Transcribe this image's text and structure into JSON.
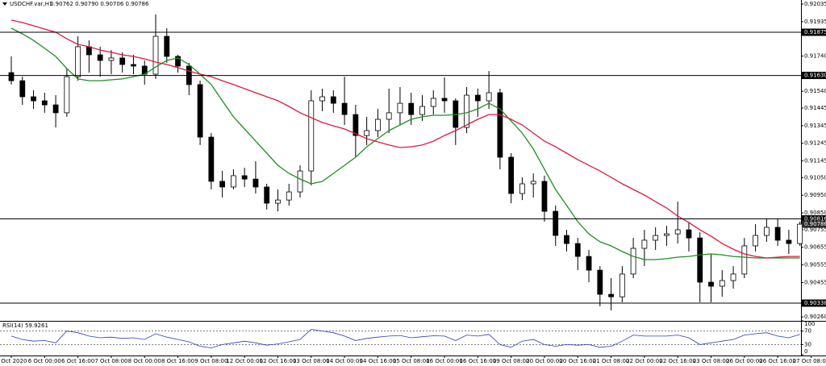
{
  "chart_data": {
    "type": "candlestick",
    "title": "USDCHF.var,H1",
    "subtitle": "0.90762 0.90790 0.90706 0.90786",
    "categories": [
      "5 Oct 2020",
      null,
      null,
      "6 Oct 00:00",
      null,
      null,
      "6 Oct 16:00",
      null,
      null,
      "7 Oct 08:00",
      null,
      null,
      "8 Oct 00:00",
      null,
      null,
      "8 Oct 16:00",
      null,
      null,
      "9 Oct 08:00",
      null,
      null,
      "12 Oct 00:00",
      null,
      null,
      "12 Oct 16:00",
      null,
      null,
      "13 Oct 08:00",
      null,
      null,
      "14 Oct 00:00",
      null,
      null,
      "14 Oct 16:00",
      null,
      null,
      "15 Oct 08:00",
      null,
      null,
      "16 Oct 00:00",
      null,
      null,
      "16 Oct 16:00",
      null,
      null,
      "19 Oct 08:00",
      null,
      null,
      "20 Oct 00:00",
      null,
      null,
      "20 Oct 16:00",
      null,
      null,
      "21 Oct 08:00",
      null,
      null,
      "22 Oct 00:00",
      null,
      null,
      "22 Oct 16:00",
      null,
      null,
      "23 Oct 08:00",
      null,
      null,
      "26 Oct 00:00",
      null,
      null,
      "26 Oct 16:00",
      null,
      null,
      "27 Oct 08:00"
    ],
    "ohlc": [
      [
        0.91646,
        0.91738,
        0.91578,
        0.916
      ],
      [
        0.916,
        0.91623,
        0.91463,
        0.91509
      ],
      [
        0.91509,
        0.91546,
        0.9144,
        0.91486
      ],
      [
        0.91486,
        0.91532,
        0.91418,
        0.91463
      ],
      [
        0.91463,
        0.91518,
        0.91335,
        0.91418
      ],
      [
        0.91418,
        0.91669,
        0.91395,
        0.91623
      ],
      [
        0.91623,
        0.91852,
        0.916,
        0.91793
      ],
      [
        0.91793,
        0.91829,
        0.91646,
        0.91747
      ],
      [
        0.91747,
        0.91793,
        0.91623,
        0.91715
      ],
      [
        0.91715,
        0.91774,
        0.91637,
        0.91729
      ],
      [
        0.91729,
        0.91761,
        0.91646,
        0.91692
      ],
      [
        0.91692,
        0.91747,
        0.91637,
        0.91683
      ],
      [
        0.91683,
        0.91715,
        0.91578,
        0.91637
      ],
      [
        0.91637,
        0.91976,
        0.9161,
        0.91852
      ],
      [
        0.91852,
        0.91898,
        0.91701,
        0.91738
      ],
      [
        0.91738,
        0.91747,
        0.91646,
        0.91683
      ],
      [
        0.91683,
        0.91701,
        0.91518,
        0.91578
      ],
      [
        0.91578,
        0.916,
        0.91235,
        0.9128
      ],
      [
        0.9128,
        0.91303,
        0.90983,
        0.91029
      ],
      [
        0.91029,
        0.91088,
        0.90937,
        0.90997
      ],
      [
        0.90997,
        0.91097,
        0.90983,
        0.91061
      ],
      [
        0.91061,
        0.91106,
        0.90997,
        0.91042
      ],
      [
        0.91042,
        0.91143,
        0.9096,
        0.90997
      ],
      [
        0.90997,
        0.91015,
        0.90869,
        0.90905
      ],
      [
        0.90905,
        0.90983,
        0.90859,
        0.90923
      ],
      [
        0.90923,
        0.91015,
        0.90892,
        0.90969
      ],
      [
        0.90969,
        0.9112,
        0.90937,
        0.91088
      ],
      [
        0.91088,
        0.91546,
        0.91006,
        0.91486
      ],
      [
        0.91486,
        0.91555,
        0.91427,
        0.91509
      ],
      [
        0.91509,
        0.91546,
        0.91418,
        0.91472
      ],
      [
        0.91472,
        0.91623,
        0.91349,
        0.91408
      ],
      [
        0.91408,
        0.91463,
        0.91166,
        0.91289
      ],
      [
        0.91289,
        0.91395,
        0.91235,
        0.91317
      ],
      [
        0.91317,
        0.9144,
        0.9128,
        0.91381
      ],
      [
        0.91381,
        0.91555,
        0.91303,
        0.91418
      ],
      [
        0.91418,
        0.91564,
        0.91349,
        0.91472
      ],
      [
        0.91472,
        0.91532,
        0.91349,
        0.91408
      ],
      [
        0.91408,
        0.91518,
        0.91372,
        0.91454
      ],
      [
        0.91454,
        0.91546,
        0.91408,
        0.915
      ],
      [
        0.915,
        0.91619,
        0.91418,
        0.91486
      ],
      [
        0.91486,
        0.915,
        0.91235,
        0.91335
      ],
      [
        0.91335,
        0.91564,
        0.91303,
        0.91518
      ],
      [
        0.91518,
        0.91555,
        0.91395,
        0.91486
      ],
      [
        0.91486,
        0.91655,
        0.9144,
        0.91532
      ],
      [
        0.91532,
        0.91555,
        0.91097,
        0.91166
      ],
      [
        0.91166,
        0.91189,
        0.90905,
        0.9096
      ],
      [
        0.9096,
        0.91052,
        0.90923,
        0.91015
      ],
      [
        0.91015,
        0.91074,
        0.90937,
        0.91029
      ],
      [
        0.91029,
        0.91061,
        0.908,
        0.90859
      ],
      [
        0.90859,
        0.90892,
        0.90663,
        0.90722
      ],
      [
        0.90722,
        0.90754,
        0.90631,
        0.90676
      ],
      [
        0.90676,
        0.90708,
        0.90525,
        0.90603
      ],
      [
        0.90603,
        0.9064,
        0.90457,
        0.90525
      ],
      [
        0.90525,
        0.90548,
        0.9032,
        0.90388
      ],
      [
        0.90388,
        0.9048,
        0.90297,
        0.90374
      ],
      [
        0.90374,
        0.90548,
        0.90343,
        0.90503
      ],
      [
        0.90503,
        0.90708,
        0.9048,
        0.90649
      ],
      [
        0.90649,
        0.90754,
        0.90548,
        0.90695
      ],
      [
        0.90695,
        0.90768,
        0.9064,
        0.90722
      ],
      [
        0.90722,
        0.90777,
        0.90663,
        0.90731
      ],
      [
        0.90731,
        0.90914,
        0.90676,
        0.90754
      ],
      [
        0.90754,
        0.908,
        0.90631,
        0.90708
      ],
      [
        0.90708,
        0.9074,
        0.90343,
        0.90457
      ],
      [
        0.90457,
        0.90617,
        0.90343,
        0.90434
      ],
      [
        0.90434,
        0.90525,
        0.90374,
        0.90466
      ],
      [
        0.90466,
        0.90548,
        0.9042,
        0.90503
      ],
      [
        0.90503,
        0.90708,
        0.9048,
        0.90663
      ],
      [
        0.90663,
        0.90786,
        0.90631,
        0.90722
      ],
      [
        0.90722,
        0.90814,
        0.90686,
        0.90768
      ],
      [
        0.90768,
        0.90814,
        0.90663,
        0.90695
      ],
      [
        0.90695,
        0.90754,
        0.90617,
        0.90676
      ],
      [
        0.90676,
        0.908,
        0.90663,
        0.90786
      ],
      null
    ],
    "ma_lines": [
      {
        "color": "#1f8f1f",
        "values": [
          0.91898,
          0.91866,
          0.91829,
          0.91784,
          0.91738,
          0.91669,
          0.9161,
          0.916,
          0.916,
          0.91605,
          0.9161,
          0.91623,
          0.91637,
          0.91678,
          0.91715,
          0.91729,
          0.91692,
          0.91637,
          0.91578,
          0.91486,
          0.91395,
          0.91326,
          0.91257,
          0.91189,
          0.9112,
          0.91074,
          0.91042,
          0.91015,
          0.91029,
          0.91074,
          0.9112,
          0.91166,
          0.91225,
          0.91271,
          0.91317,
          0.91349,
          0.91381,
          0.91395,
          0.91404,
          0.91404,
          0.91408,
          0.91418,
          0.9144,
          0.91472,
          0.9144,
          0.91372,
          0.91303,
          0.91212,
          0.91097,
          0.90983,
          0.90892,
          0.908,
          0.90731,
          0.90686,
          0.90663,
          0.90631,
          0.90603,
          0.90585,
          0.90585,
          0.9059,
          0.90599,
          0.90603,
          0.90612,
          0.90617,
          0.90612,
          0.90603,
          0.90599,
          0.90594,
          0.90594,
          0.90594,
          0.90594,
          0.90594,
          null
        ]
      },
      {
        "color": "#e0193f",
        "values": [
          0.91944,
          0.9193,
          0.91912,
          0.91893,
          0.91875,
          0.91838,
          0.91806,
          0.91793,
          0.91774,
          0.91761,
          0.91747,
          0.91738,
          0.91724,
          0.91706,
          0.91692,
          0.91674,
          0.91655,
          0.91637,
          0.91623,
          0.916,
          0.91578,
          0.91555,
          0.91532,
          0.91509,
          0.91486,
          0.91454,
          0.91418,
          0.9139,
          0.91363,
          0.91344,
          0.91326,
          0.91299,
          0.91271,
          0.91253,
          0.91235,
          0.91221,
          0.91225,
          0.91235,
          0.91257,
          0.91289,
          0.91317,
          0.91349,
          0.91381,
          0.91408,
          0.91408,
          0.91381,
          0.91349,
          0.91303,
          0.91257,
          0.91225,
          0.91189,
          0.91152,
          0.9112,
          0.91088,
          0.91052,
          0.91015,
          0.90983,
          0.90951,
          0.90914,
          0.90878,
          0.90832,
          0.90795,
          0.90754,
          0.90718,
          0.90676,
          0.90644,
          0.90617,
          0.90603,
          0.90594,
          0.90599,
          0.90603,
          0.90603,
          null
        ]
      }
    ],
    "levels": [
      0.91875,
      {
        "value": 0.9163,
        "label": "0.91630"
      },
      0.90816,
      0.90338
    ],
    "last_price": 0.90786,
    "ylim": [
      0.90242,
      0.92058
    ],
    "yticks": [
      0.92035,
      0.91935,
      {
        "value": 0.9174,
        "label": "0.91740"
      },
      {
        "value": 0.9154,
        "label": "0.91540"
      },
      0.91445,
      0.91345,
      0.91245,
      0.91145,
      {
        "value": 0.9105,
        "label": "0.91050"
      },
      {
        "value": 0.9095,
        "label": "0.90950"
      },
      {
        "value": 0.9085,
        "label": "0.90850"
      },
      0.90755,
      0.90655,
      0.90555,
      0.90455,
      {
        "value": 0.9026,
        "label": "0.90260"
      }
    ],
    "rsi": {
      "label": "RSI(14) 59.9261",
      "color": "#2b3fb8",
      "ylim": [
        0,
        100
      ],
      "yticks": [
        100,
        70,
        30,
        0
      ],
      "levels": [
        70,
        30
      ],
      "values": [
        55,
        45,
        40,
        42,
        35,
        70,
        65,
        55,
        50,
        52,
        48,
        50,
        45,
        62,
        52,
        45,
        38,
        25,
        20,
        30,
        35,
        40,
        35,
        28,
        32,
        38,
        45,
        75,
        70,
        65,
        55,
        42,
        48,
        52,
        55,
        57,
        50,
        53,
        56,
        55,
        42,
        58,
        55,
        60,
        30,
        22,
        40,
        45,
        30,
        25,
        30,
        28,
        30,
        22,
        25,
        40,
        58,
        55,
        55,
        55,
        58,
        50,
        30,
        35,
        40,
        45,
        58,
        62,
        65,
        55,
        50,
        60,
        null
      ]
    }
  }
}
